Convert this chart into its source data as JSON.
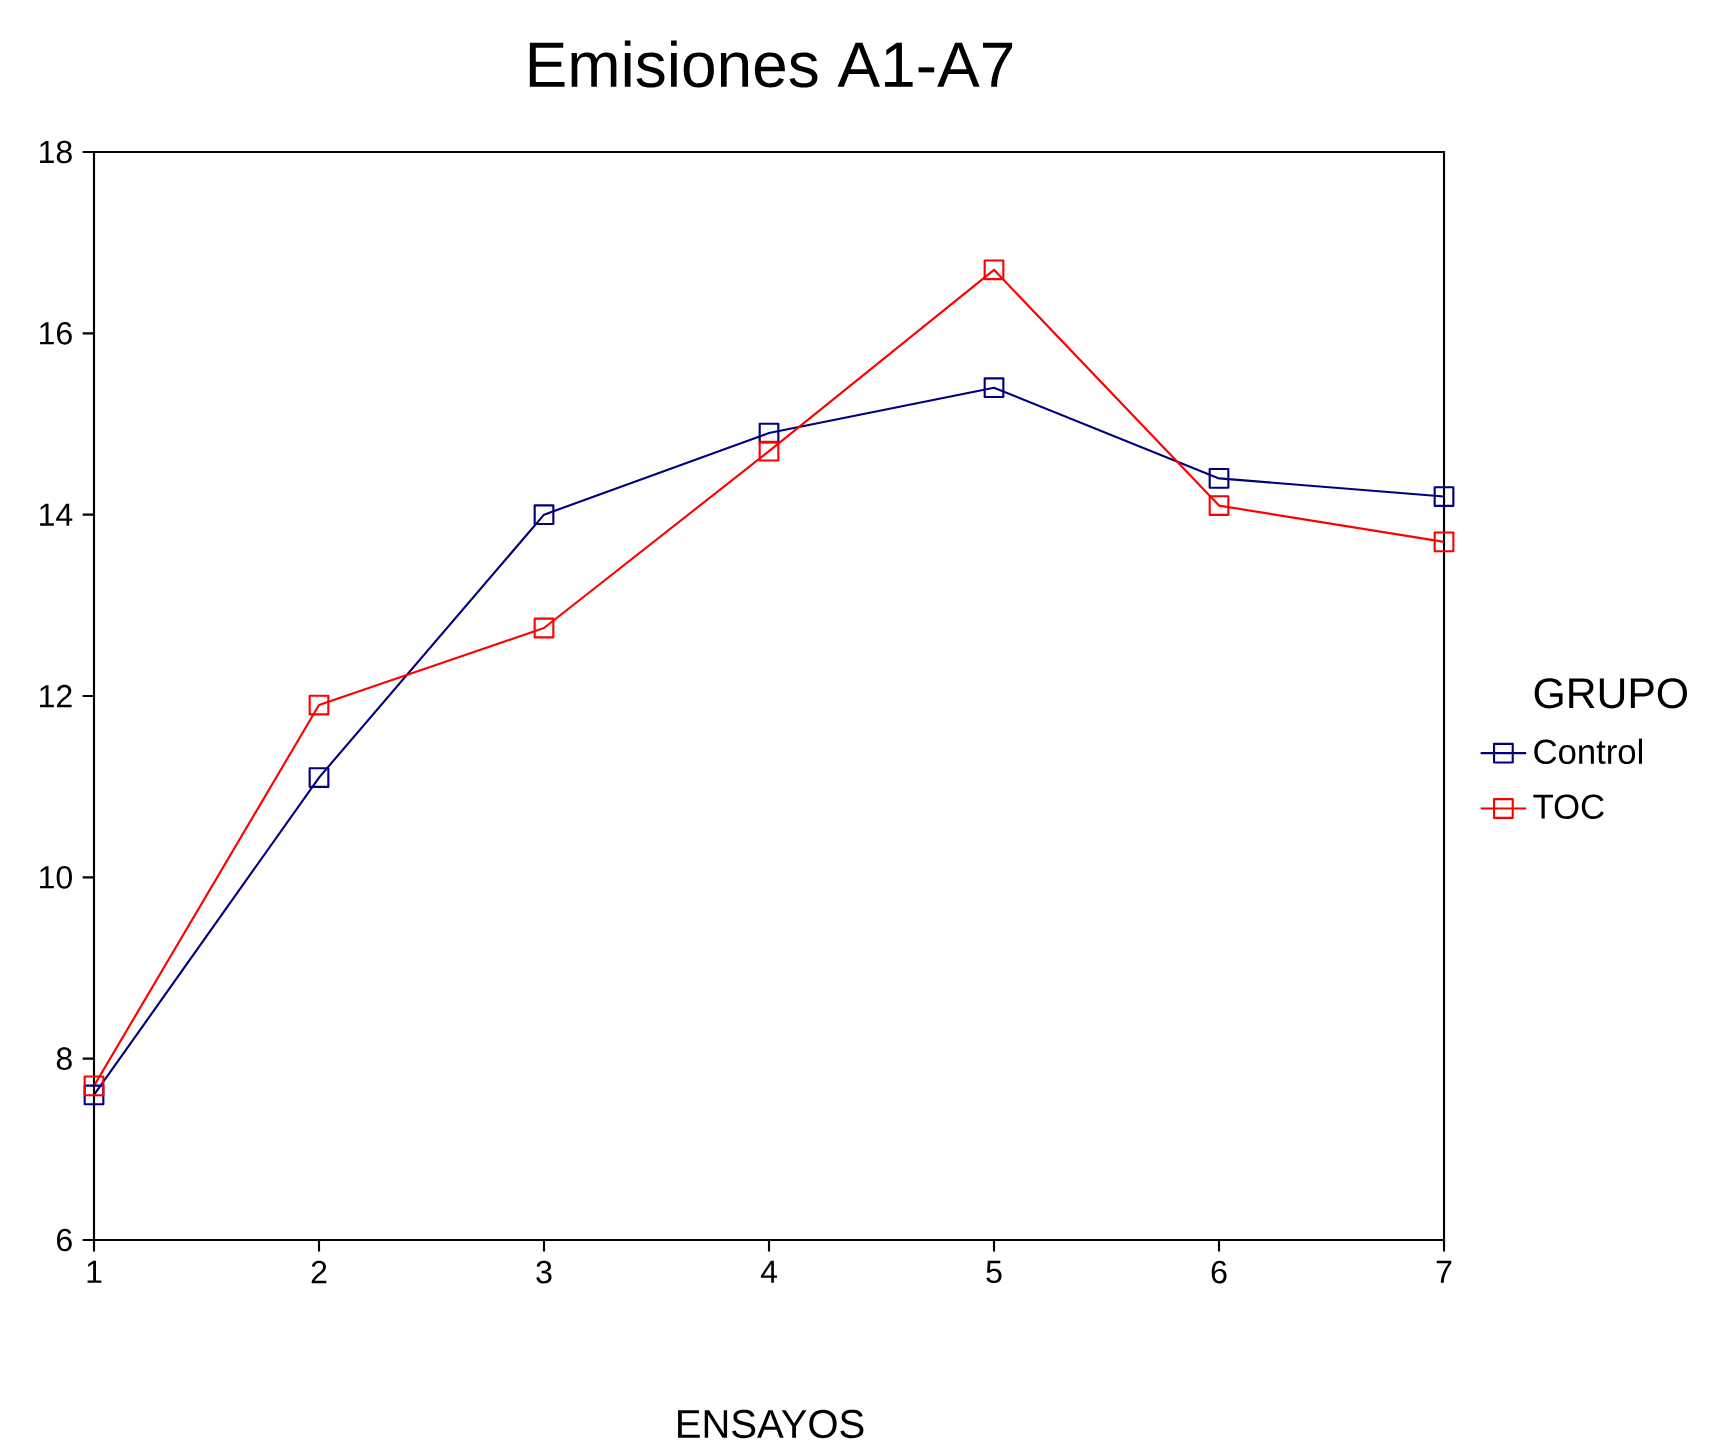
{
  "chart_data": {
    "type": "line",
    "title": "Emisiones A1-A7",
    "xlabel": "ENSAYOS",
    "legend_title": "GRUPO",
    "categories": [
      "1",
      "2",
      "3",
      "4",
      "5",
      "6",
      "7"
    ],
    "series": [
      {
        "name": "Control",
        "color": "#00007f",
        "values": [
          7.6,
          11.1,
          14.0,
          14.9,
          15.4,
          14.4,
          14.2
        ]
      },
      {
        "name": "TOC",
        "color": "#ff0000",
        "values": [
          7.7,
          11.9,
          12.75,
          14.7,
          16.7,
          14.1,
          13.7
        ]
      }
    ],
    "ylim": [
      6,
      18
    ],
    "yticks": [
      6,
      8,
      10,
      12,
      14,
      16,
      18
    ],
    "marker": "square",
    "line_style": "solid",
    "legend": "right",
    "grid": false
  }
}
